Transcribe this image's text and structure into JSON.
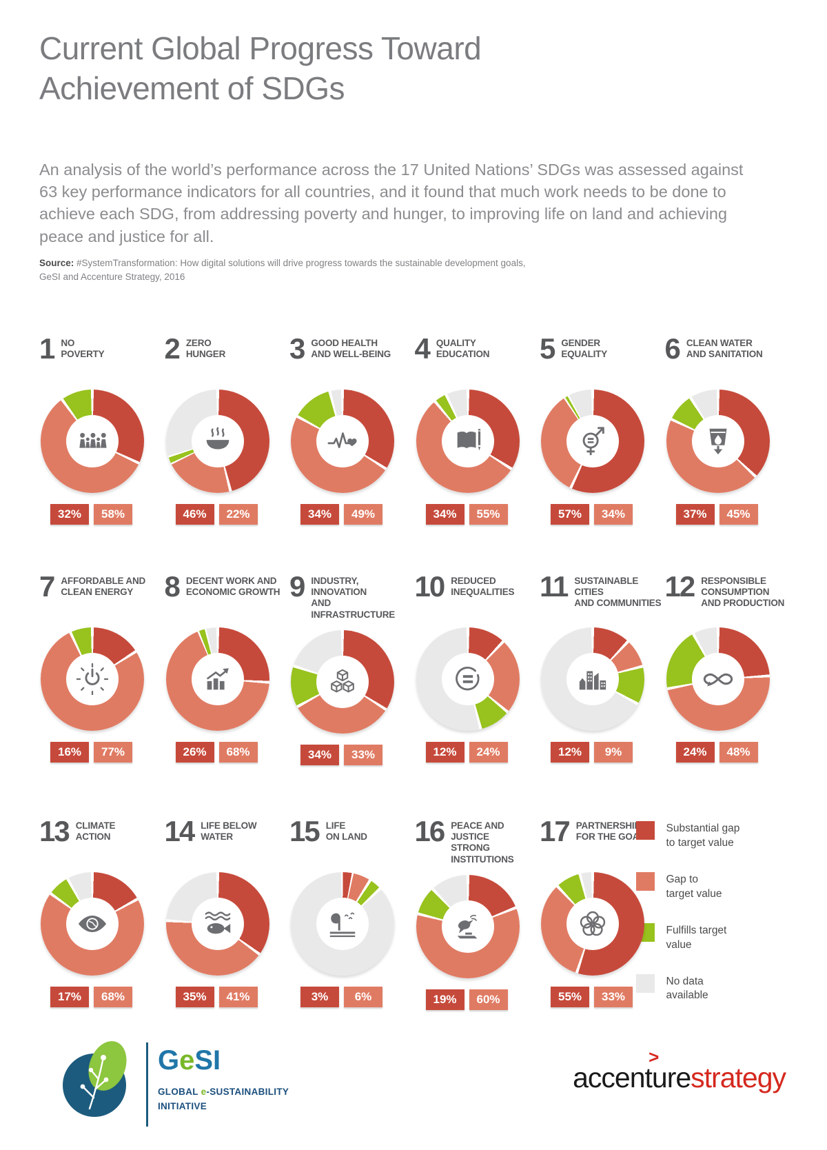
{
  "page": {
    "title": "Current Global Progress Toward\nAchievement of SDGs",
    "intro": "An analysis of the world’s performance across the 17 United Nations’ SDGs was assessed against 63 key performance indicators for all countries, and it found that much work needs to be done to achieve each SDG, from addressing poverty and hunger, to improving life on land and achieving peace and justice for all.",
    "source_label": "Source:",
    "source_text": " #SystemTransformation: How digital solutions will drive progress towards the sustainable development goals,\nGeSI and Accenture Strategy, 2016"
  },
  "colors": {
    "substantial_gap": "#C64A3B",
    "gap_to_target": "#E07B63",
    "fulfills_target": "#98C21D",
    "no_data": "#E9E9E9"
  },
  "chart_data": {
    "type": "pie",
    "subtype": "donut",
    "unit": "%",
    "legend_position": "bottom-right",
    "segment_order_clockwise_from_top": [
      "substantial_gap",
      "gap_to_target",
      "fulfills_target",
      "no_data"
    ],
    "charts": [
      {
        "goal": 1,
        "title": "NO\nPOVERTY",
        "icon": "family-icon",
        "substantial_gap": 32,
        "gap_to_target": 58,
        "fulfills_target": 10,
        "no_data": 0
      },
      {
        "goal": 2,
        "title": "ZERO\nHUNGER",
        "icon": "bowl-icon",
        "substantial_gap": 46,
        "gap_to_target": 22,
        "fulfills_target": 2,
        "no_data": 30
      },
      {
        "goal": 3,
        "title": "GOOD HEALTH\nAND WELL-BEING",
        "icon": "heartbeat-icon",
        "substantial_gap": 34,
        "gap_to_target": 49,
        "fulfills_target": 13,
        "no_data": 4
      },
      {
        "goal": 4,
        "title": "QUALITY\nEDUCATION",
        "icon": "book-icon",
        "substantial_gap": 34,
        "gap_to_target": 55,
        "fulfills_target": 4,
        "no_data": 7
      },
      {
        "goal": 5,
        "title": "GENDER\nEQUALITY",
        "icon": "gender-equality-icon",
        "substantial_gap": 57,
        "gap_to_target": 34,
        "fulfills_target": 1,
        "no_data": 8
      },
      {
        "goal": 6,
        "title": "CLEAN WATER\nAND SANITATION",
        "icon": "water-glass-icon",
        "substantial_gap": 37,
        "gap_to_target": 45,
        "fulfills_target": 9,
        "no_data": 9
      },
      {
        "goal": 7,
        "title": "AFFORDABLE AND\nCLEAN ENERGY",
        "icon": "power-icon",
        "substantial_gap": 16,
        "gap_to_target": 77,
        "fulfills_target": 7,
        "no_data": 0
      },
      {
        "goal": 8,
        "title": "DECENT WORK AND\nECONOMIC GROWTH",
        "icon": "growth-chart-icon",
        "substantial_gap": 26,
        "gap_to_target": 68,
        "fulfills_target": 2,
        "no_data": 4
      },
      {
        "goal": 9,
        "title": "INDUSTRY, INNOVATION\nAND INFRASTRUCTURE",
        "icon": "cubes-icon",
        "substantial_gap": 34,
        "gap_to_target": 33,
        "fulfills_target": 13,
        "no_data": 20
      },
      {
        "goal": 10,
        "title": "REDUCED\nINEQUALITIES",
        "icon": "equality-icon",
        "substantial_gap": 12,
        "gap_to_target": 24,
        "fulfills_target": 10,
        "no_data": 54
      },
      {
        "goal": 11,
        "title": "SUSTAINABLE CITIES\nAND COMMUNITIES",
        "icon": "city-icon",
        "substantial_gap": 12,
        "gap_to_target": 9,
        "fulfills_target": 12,
        "no_data": 67
      },
      {
        "goal": 12,
        "title": "RESPONSIBLE\nCONSUMPTION\nAND PRODUCTION",
        "icon": "infinity-icon",
        "substantial_gap": 24,
        "gap_to_target": 48,
        "fulfills_target": 20,
        "no_data": 8
      },
      {
        "goal": 13,
        "title": "CLIMATE\nACTION",
        "icon": "eye-globe-icon",
        "substantial_gap": 17,
        "gap_to_target": 68,
        "fulfills_target": 7,
        "no_data": 8
      },
      {
        "goal": 14,
        "title": "LIFE BELOW\nWATER",
        "icon": "fish-icon",
        "substantial_gap": 35,
        "gap_to_target": 41,
        "fulfills_target": 0,
        "no_data": 24
      },
      {
        "goal": 15,
        "title": "LIFE\nON LAND",
        "icon": "tree-icon",
        "substantial_gap": 3,
        "gap_to_target": 6,
        "fulfills_target": 4,
        "no_data": 87
      },
      {
        "goal": 16,
        "title": "PEACE AND JUSTICE\nSTRONG INSTITUTIONS",
        "icon": "dove-icon",
        "substantial_gap": 19,
        "gap_to_target": 60,
        "fulfills_target": 9,
        "no_data": 12
      },
      {
        "goal": 17,
        "title": "PARTNERSHIPS\nFOR THE GOALS",
        "icon": "circles-icon",
        "substantial_gap": 55,
        "gap_to_target": 33,
        "fulfills_target": 8,
        "no_data": 4
      }
    ]
  },
  "legend": {
    "items": [
      {
        "label": "Substantial gap\nto target value",
        "color": "#C64A3B"
      },
      {
        "label": "Gap to\ntarget value",
        "color": "#E07B63"
      },
      {
        "label": "Fulfills target\nvalue",
        "color": "#98C21D"
      },
      {
        "label": "No data\navailable",
        "color": "#E9E9E9"
      }
    ]
  },
  "footer": {
    "gesi": {
      "name_g": "G",
      "name_e": "e",
      "name_si": "SI",
      "sub_pre": "GLOBAL ",
      "sub_e": "e",
      "sub_post": "-SUSTAINABILITY",
      "sub_line2": "INITIATIVE"
    },
    "accenture": {
      "word1": "accenture",
      "word2": "strategy",
      "caret": ">"
    }
  }
}
